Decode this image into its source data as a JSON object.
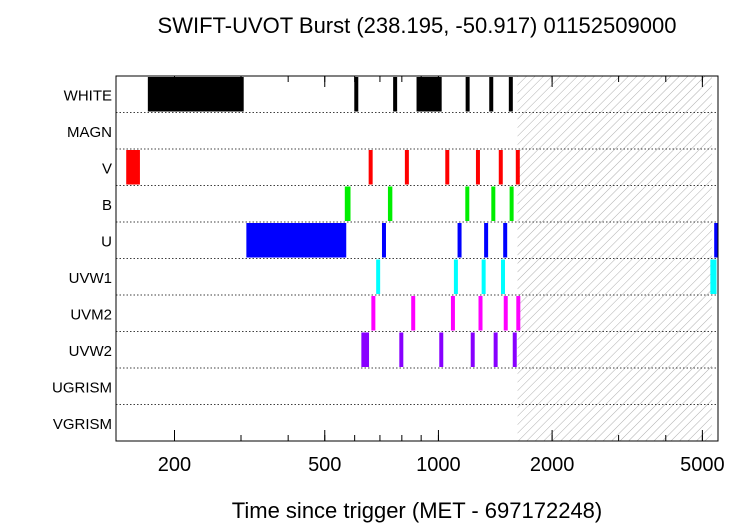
{
  "chart_data": {
    "type": "timeline",
    "title": "SWIFT-UVOT Burst (238.195, -50.917) 01152509000",
    "xlabel": "Time since trigger (MET - 697172248)",
    "x_scale": "log",
    "xlim": [
      140,
      5500
    ],
    "x_ticks": [
      200,
      500,
      1000,
      2000,
      5000
    ],
    "x_tick_labels": [
      "200",
      "500",
      "1000",
      "2000",
      "5000"
    ],
    "grid": "dotted horizontal band separators",
    "hatched_region": [
      1620,
      5300
    ],
    "bands": [
      "WHITE",
      "MAGN",
      "V",
      "B",
      "U",
      "UVW1",
      "UVM2",
      "UVW2",
      "UGRISM",
      "VGRISM"
    ],
    "band_colors": {
      "WHITE": "#000000",
      "V": "#ff0000",
      "B": "#00ee00",
      "U": "#0000ff",
      "UVW1": "#00ffff",
      "UVM2": "#ff00ff",
      "UVW2": "#8800ff"
    },
    "exposures": {
      "WHITE": [
        [
          170,
          305
        ],
        [
          600,
          612
        ],
        [
          762,
          774
        ],
        [
          875,
          1020
        ],
        [
          1185,
          1205
        ],
        [
          1370,
          1390
        ],
        [
          1545,
          1565
        ]
      ],
      "MAGN": [],
      "V": [
        [
          149,
          162
        ],
        [
          655,
          668
        ],
        [
          818,
          832
        ],
        [
          1048,
          1063
        ],
        [
          1265,
          1280
        ],
        [
          1455,
          1470
        ],
        [
          1615,
          1630
        ]
      ],
      "B": [
        [
          565,
          585
        ],
        [
          735,
          755
        ],
        [
          1185,
          1200
        ],
        [
          1390,
          1405
        ],
        [
          1555,
          1570
        ]
      ],
      "U": [
        [
          310,
          570
        ],
        [
          710,
          725
        ],
        [
          1130,
          1145
        ],
        [
          1330,
          1345
        ],
        [
          1495,
          1510
        ],
        [
          5400,
          5480
        ]
      ],
      "UVW1": [
        [
          685,
          700
        ],
        [
          1105,
          1120
        ],
        [
          1310,
          1325
        ],
        [
          1475,
          1490
        ],
        [
          5250,
          5450
        ]
      ],
      "UVM2": [
        [
          665,
          680
        ],
        [
          850,
          865
        ],
        [
          1085,
          1100
        ],
        [
          1285,
          1300
        ],
        [
          1500,
          1515
        ],
        [
          1620,
          1635
        ]
      ],
      "UVW2": [
        [
          625,
          655
        ],
        [
          790,
          805
        ],
        [
          1010,
          1025
        ],
        [
          1225,
          1240
        ],
        [
          1410,
          1425
        ],
        [
          1585,
          1600
        ]
      ],
      "UGRISM": [],
      "VGRISM": []
    }
  }
}
